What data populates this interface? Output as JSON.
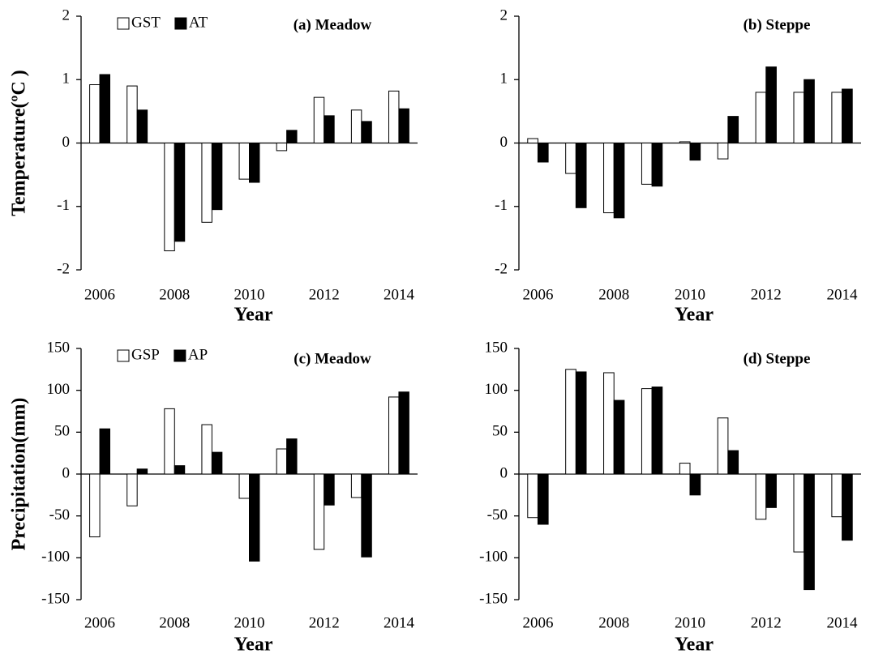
{
  "chart_data": [
    {
      "type": "bar",
      "title": "(a) Meadow",
      "xlabel": "Year",
      "ylabel": "Temperature(ºC )",
      "categories": [
        "2006",
        null,
        "2008",
        null,
        "2010",
        null,
        "2012",
        null,
        "2014"
      ],
      "series": [
        {
          "name": "GST",
          "color": "#ffffff",
          "values": [
            0.92,
            0.9,
            -1.7,
            -1.25,
            -0.57,
            -0.12,
            0.72,
            0.52,
            0.82
          ]
        },
        {
          "name": "AT",
          "color": "#000000",
          "values": [
            1.08,
            0.52,
            -1.55,
            -1.05,
            -0.62,
            0.2,
            0.43,
            0.34,
            0.54
          ]
        }
      ],
      "ylim": [
        -2,
        2
      ],
      "yticks": [
        -2,
        -1,
        0,
        1,
        2
      ],
      "legend": "top-left"
    },
    {
      "type": "bar",
      "title": "(b) Steppe",
      "xlabel": "Year",
      "categories": [
        "2006",
        null,
        "2008",
        null,
        "2010",
        null,
        "2012",
        null,
        "2014"
      ],
      "series": [
        {
          "color": "#ffffff",
          "values": [
            0.07,
            -0.48,
            -1.1,
            -0.65,
            0.02,
            -0.25,
            0.8,
            0.8,
            0.8
          ]
        },
        {
          "color": "#000000",
          "values": [
            -0.3,
            -1.02,
            -1.18,
            -0.68,
            -0.27,
            0.42,
            1.2,
            1.0,
            0.85
          ]
        }
      ],
      "ylim": [
        -2,
        2
      ],
      "yticks": [
        -2,
        -1,
        0,
        1,
        2
      ]
    },
    {
      "type": "bar",
      "title": "(c) Meadow",
      "xlabel": "Year",
      "ylabel": "Precipitation(mm)",
      "categories": [
        "2006",
        null,
        "2008",
        null,
        "2010",
        null,
        "2012",
        null,
        "2014"
      ],
      "series": [
        {
          "name": "GSP",
          "color": "#ffffff",
          "values": [
            -75,
            -38,
            78,
            59,
            -29,
            30,
            -90,
            -28,
            92
          ]
        },
        {
          "name": "AP",
          "color": "#000000",
          "values": [
            54,
            6,
            10,
            26,
            -104,
            42,
            -37,
            -99,
            98
          ]
        }
      ],
      "ylim": [
        -150,
        150
      ],
      "yticks": [
        -150,
        -100,
        -50,
        0,
        50,
        100,
        150
      ],
      "legend": "top-left"
    },
    {
      "type": "bar",
      "title": "(d) Steppe",
      "xlabel": "Year",
      "categories": [
        "2006",
        null,
        "2008",
        null,
        "2010",
        null,
        "2012",
        null,
        "2014"
      ],
      "series": [
        {
          "color": "#ffffff",
          "values": [
            -52,
            125,
            121,
            102,
            13,
            67,
            -54,
            -93,
            -51
          ]
        },
        {
          "color": "#000000",
          "values": [
            -60,
            122,
            88,
            104,
            -25,
            28,
            -40,
            -138,
            -79
          ]
        }
      ],
      "ylim": [
        -150,
        150
      ],
      "yticks": [
        -150,
        -100,
        -50,
        0,
        50,
        100,
        150
      ]
    }
  ]
}
